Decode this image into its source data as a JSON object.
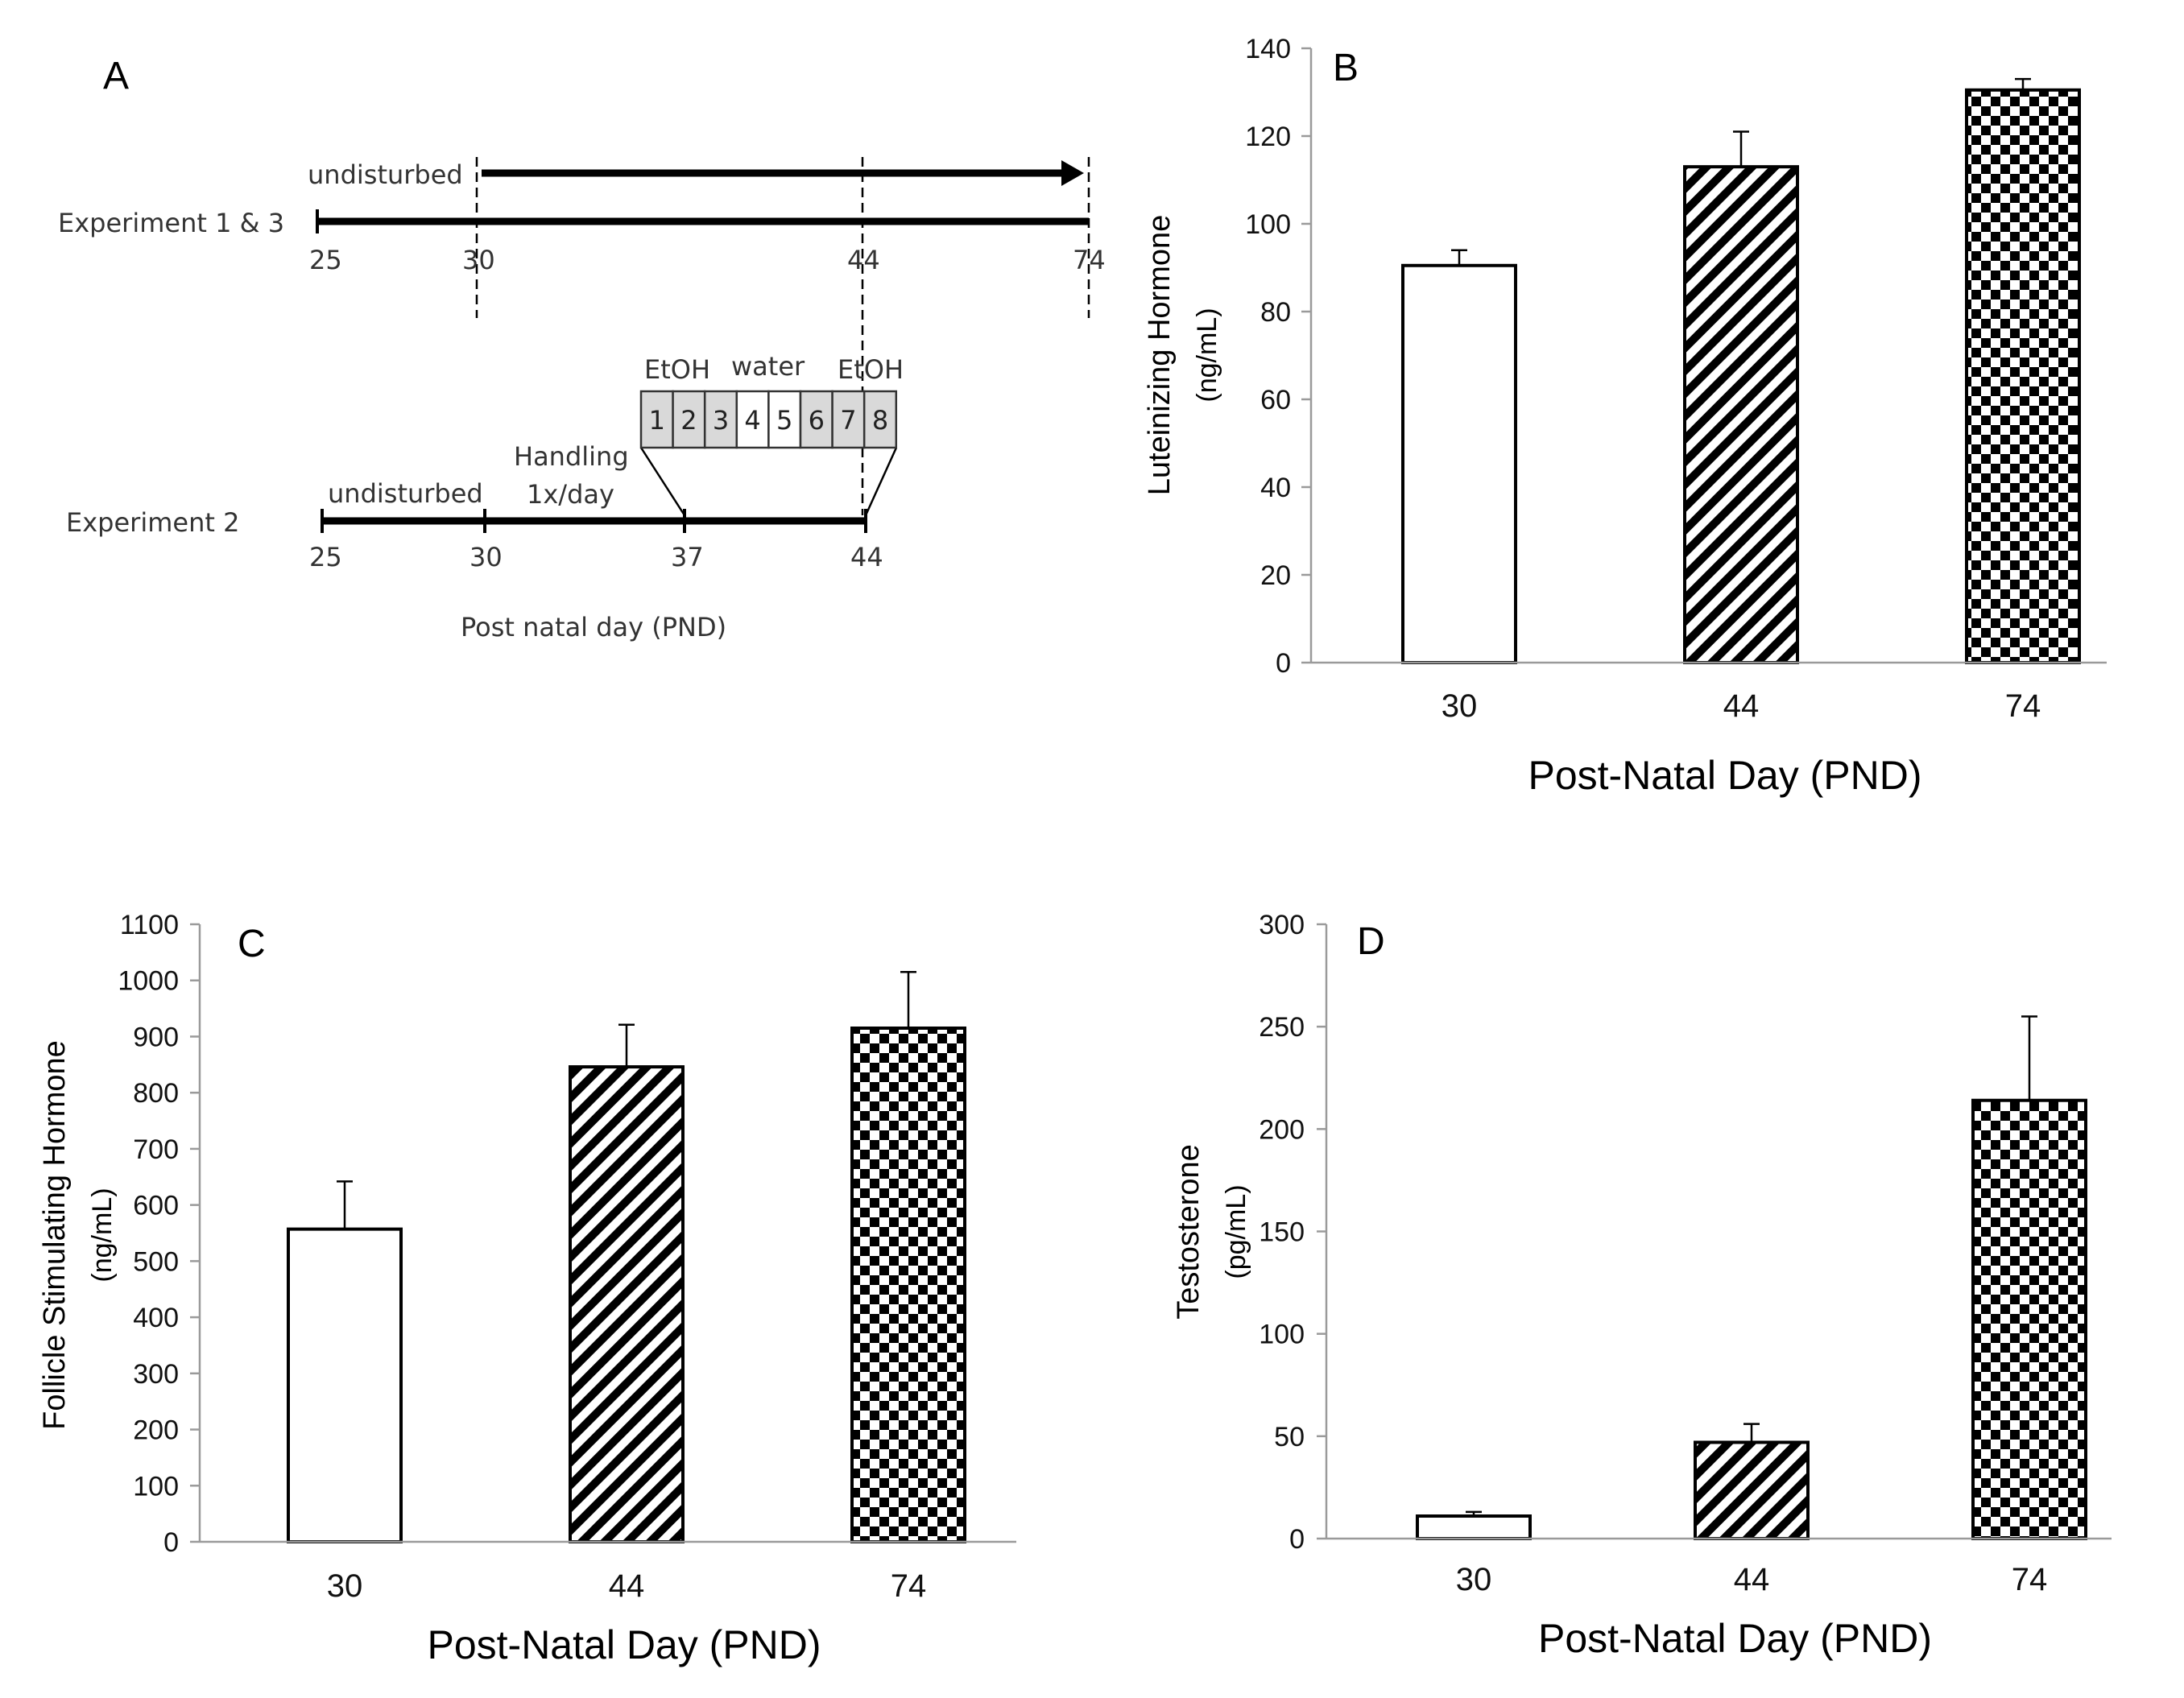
{
  "panel_a": {
    "panel_label": "A",
    "exp13": {
      "label": "Experiment 1 & 3",
      "undisturbed_label": "undisturbed",
      "ticks": [
        "25",
        "30",
        "44",
        "74"
      ]
    },
    "exp2": {
      "label": "Experiment 2",
      "undisturbed_label": "undisturbed",
      "handling_line1": "Handling",
      "handling_line2": "1x/day",
      "ticks": [
        "25",
        "30",
        "37",
        "44"
      ],
      "etoh_label_1": "EtOH",
      "water_label": "water",
      "etoh_label_2": "EtOH",
      "day_boxes": [
        {
          "label": "1",
          "treatment": "EtOH"
        },
        {
          "label": "2",
          "treatment": "EtOH"
        },
        {
          "label": "3",
          "treatment": "EtOH"
        },
        {
          "label": "4",
          "treatment": "water"
        },
        {
          "label": "5",
          "treatment": "water"
        },
        {
          "label": "6",
          "treatment": "EtOH"
        },
        {
          "label": "7",
          "treatment": "EtOH"
        },
        {
          "label": "8",
          "treatment": "EtOH"
        }
      ]
    },
    "axis_caption": "Post natal day (PND)"
  },
  "chart_data": [
    {
      "panel_label": "B",
      "type": "bar",
      "categories": [
        "30",
        "44",
        "74"
      ],
      "values": [
        90.5,
        113,
        130.5
      ],
      "errors": [
        3.5,
        8,
        2.5
      ],
      "patterns": [
        "open",
        "diagonal",
        "checker"
      ],
      "ylabel_line1": "Luteinizing Hormone",
      "ylabel_line2": "(ng/mL)",
      "xlabel": "Post-Natal Day (PND)",
      "ylim": [
        0,
        140
      ],
      "yticks": [
        0,
        20,
        40,
        60,
        80,
        100,
        120,
        140
      ]
    },
    {
      "panel_label": "C",
      "type": "bar",
      "categories": [
        "30",
        "44",
        "74"
      ],
      "values": [
        557,
        846,
        915
      ],
      "errors": [
        85,
        75,
        100
      ],
      "patterns": [
        "open",
        "diagonal",
        "checker"
      ],
      "ylabel_line1": "Follicle Stimulating Hormone",
      "ylabel_line2": "(ng/mL)",
      "xlabel": "Post-Natal Day (PND)",
      "ylim": [
        0,
        1100
      ],
      "yticks": [
        0,
        100,
        200,
        300,
        400,
        500,
        600,
        700,
        800,
        900,
        1000,
        1100
      ]
    },
    {
      "panel_label": "D",
      "type": "bar",
      "categories": [
        "30",
        "44",
        "74"
      ],
      "values": [
        11,
        47,
        214
      ],
      "errors": [
        2,
        9,
        41
      ],
      "patterns": [
        "open",
        "diagonal",
        "checker"
      ],
      "ylabel_line1": "Testosterone",
      "ylabel_line2": "(pg/mL)",
      "xlabel": "Post-Natal Day (PND)",
      "ylim": [
        0,
        300
      ],
      "yticks": [
        0,
        50,
        100,
        150,
        200,
        250,
        300
      ]
    }
  ]
}
